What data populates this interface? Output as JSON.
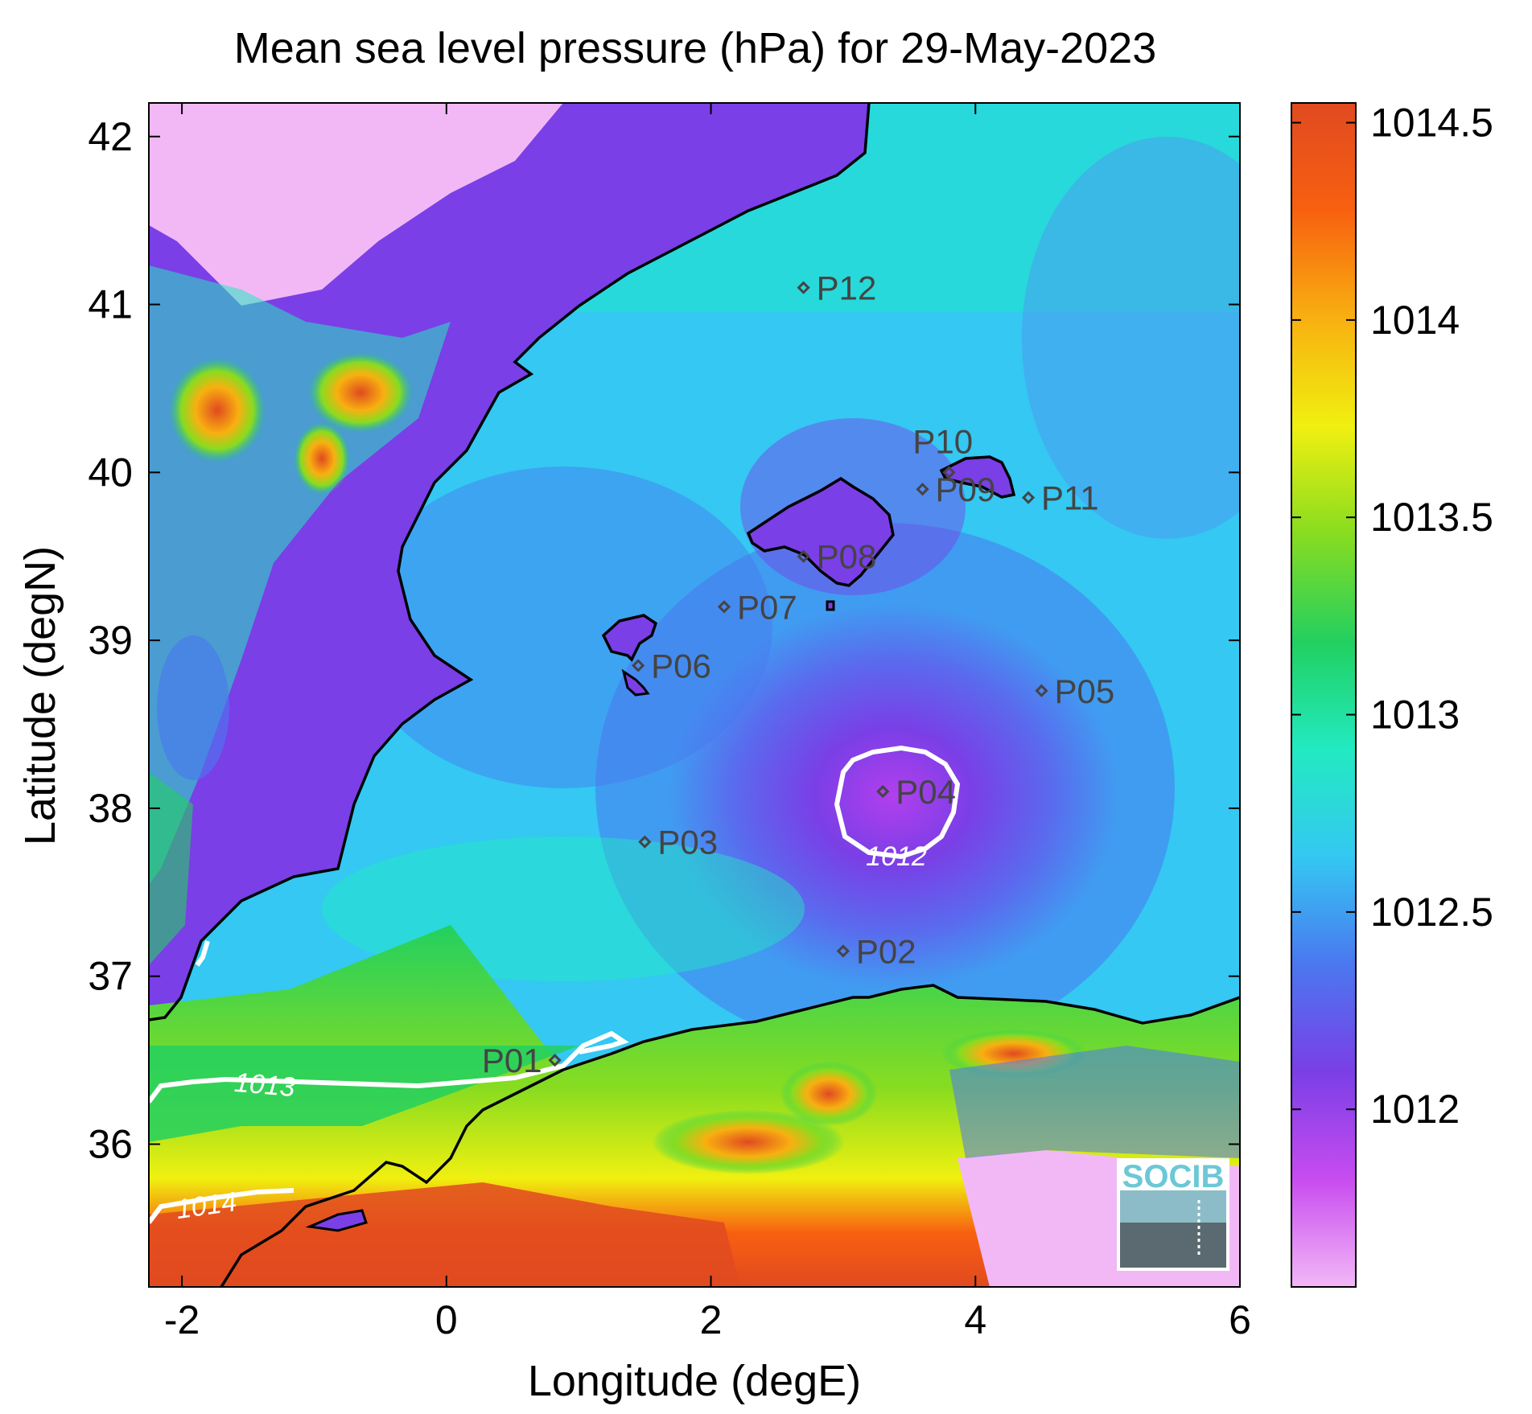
{
  "title": "Mean sea level pressure (hPa) for 29-May-2023",
  "axes": {
    "xlabel": "Longitude (degE)",
    "ylabel": "Latitude (degN)",
    "xticks": [
      "-2",
      "0",
      "2",
      "4",
      "6"
    ],
    "yticks": [
      "42",
      "41",
      "40",
      "39",
      "38",
      "37",
      "36"
    ]
  },
  "colorbar": {
    "ticks": [
      "1014.5",
      "1014",
      "1013.5",
      "1013",
      "1012.5",
      "1012"
    ],
    "range": [
      1011.55,
      1014.55
    ],
    "colors": [
      "#f2b8f6",
      "#c84cf0",
      "#7a3fe6",
      "#4a78f0",
      "#34c8f2",
      "#22eac0",
      "#22d060",
      "#88dc20",
      "#f0f010",
      "#f8b010",
      "#f86010",
      "#e04a20"
    ]
  },
  "stations": [
    {
      "id": "P01",
      "lon": 0.82,
      "lat": 36.5
    },
    {
      "id": "P02",
      "lon": 3.0,
      "lat": 37.15
    },
    {
      "id": "P03",
      "lon": 1.5,
      "lat": 37.8
    },
    {
      "id": "P04",
      "lon": 3.3,
      "lat": 38.1
    },
    {
      "id": "P05",
      "lon": 4.5,
      "lat": 38.7
    },
    {
      "id": "P06",
      "lon": 1.45,
      "lat": 38.85
    },
    {
      "id": "P07",
      "lon": 2.1,
      "lat": 39.2
    },
    {
      "id": "P08",
      "lon": 2.7,
      "lat": 39.5
    },
    {
      "id": "P09",
      "lon": 3.6,
      "lat": 39.9
    },
    {
      "id": "P10",
      "lon": 3.8,
      "lat": 40.0
    },
    {
      "id": "P11",
      "lon": 4.4,
      "lat": 39.85
    },
    {
      "id": "P12",
      "lon": 2.7,
      "lat": 41.1
    }
  ],
  "contour_labels": [
    "1012",
    "1013",
    "1014"
  ],
  "logo": "SOCIB",
  "colors": {
    "coastline": "#000000",
    "contour": "#ffffff",
    "station": "#444444"
  }
}
